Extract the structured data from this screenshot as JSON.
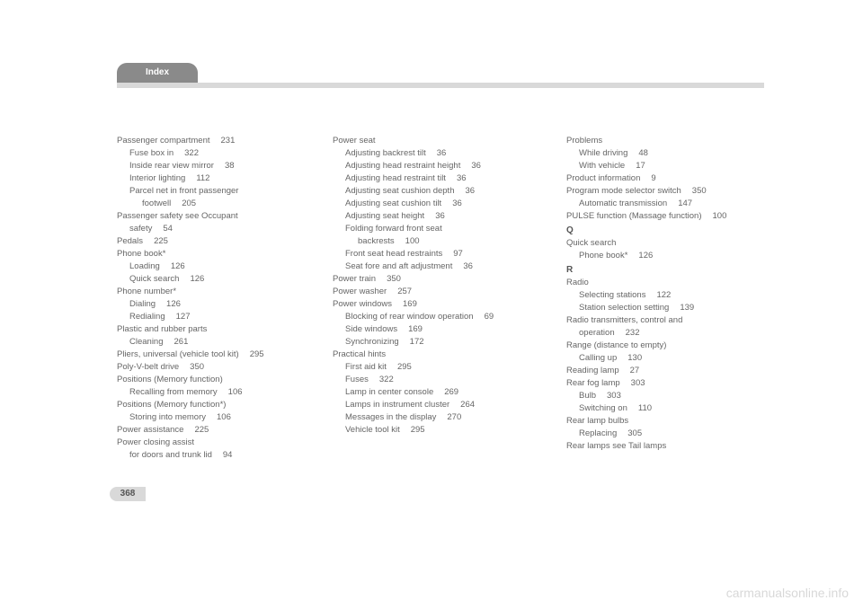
{
  "header": {
    "tab_label": "Index"
  },
  "pagenum": "368",
  "watermark": "carmanualsonline.info",
  "col1": [
    {
      "t": "Passenger compartment",
      "p": "231",
      "cls": "main"
    },
    {
      "t": "Fuse box in",
      "p": "322",
      "cls": "sub"
    },
    {
      "t": "Inside rear view mirror",
      "p": "38",
      "cls": "sub"
    },
    {
      "t": "Interior lighting",
      "p": "112",
      "cls": "sub"
    },
    {
      "t": "Parcel net in front passenger",
      "cls": "sub"
    },
    {
      "t": "footwell",
      "p": "205",
      "cls": "subsub"
    },
    {
      "t": "Passenger safety see Occupant",
      "cls": "main"
    },
    {
      "t": "safety",
      "p": "54",
      "cls": "sub"
    },
    {
      "t": "Pedals",
      "p": "225",
      "cls": "main"
    },
    {
      "t": "Phone book*",
      "cls": "main"
    },
    {
      "t": "Loading",
      "p": "126",
      "cls": "sub"
    },
    {
      "t": "Quick search",
      "p": "126",
      "cls": "sub"
    },
    {
      "t": "Phone number*",
      "cls": "main"
    },
    {
      "t": "Dialing",
      "p": "126",
      "cls": "sub"
    },
    {
      "t": "Redialing",
      "p": "127",
      "cls": "sub"
    },
    {
      "t": "Plastic and rubber parts",
      "cls": "main"
    },
    {
      "t": "Cleaning",
      "p": "261",
      "cls": "sub"
    },
    {
      "t": "Pliers, universal (vehicle tool kit)",
      "p": "295",
      "cls": "main"
    },
    {
      "t": "Poly-V-belt drive",
      "p": "350",
      "cls": "main"
    },
    {
      "t": "Positions (Memory function)",
      "cls": "main"
    },
    {
      "t": "Recalling from memory",
      "p": "106",
      "cls": "sub"
    },
    {
      "t": "Positions (Memory function*)",
      "cls": "main"
    },
    {
      "t": "Storing into memory",
      "p": "106",
      "cls": "sub"
    },
    {
      "t": "Power assistance",
      "p": "225",
      "cls": "main"
    },
    {
      "t": "Power closing assist",
      "cls": "main"
    },
    {
      "t": "for doors and trunk lid",
      "p": "94",
      "cls": "sub"
    }
  ],
  "col2": [
    {
      "t": "Power seat",
      "cls": "main"
    },
    {
      "t": "Adjusting backrest tilt",
      "p": "36",
      "cls": "sub"
    },
    {
      "t": "Adjusting head restraint height",
      "p": "36",
      "cls": "sub"
    },
    {
      "t": "Adjusting head restraint tilt",
      "p": "36",
      "cls": "sub"
    },
    {
      "t": "Adjusting seat cushion depth",
      "p": "36",
      "cls": "sub"
    },
    {
      "t": "Adjusting seat cushion tilt",
      "p": "36",
      "cls": "sub"
    },
    {
      "t": "Adjusting seat height",
      "p": "36",
      "cls": "sub"
    },
    {
      "t": "Folding forward front seat",
      "cls": "sub"
    },
    {
      "t": "backrests",
      "p": "100",
      "cls": "subsub"
    },
    {
      "t": "Front seat head restraints",
      "p": "97",
      "cls": "sub"
    },
    {
      "t": "Seat fore and aft adjustment",
      "p": "36",
      "cls": "sub"
    },
    {
      "t": "Power train",
      "p": "350",
      "cls": "main"
    },
    {
      "t": "Power washer",
      "p": "257",
      "cls": "main"
    },
    {
      "t": "Power windows",
      "p": "169",
      "cls": "main"
    },
    {
      "t": "Blocking of rear window operation",
      "p": "69",
      "cls": "sub"
    },
    {
      "t": "Side windows",
      "p": "169",
      "cls": "sub"
    },
    {
      "t": "Synchronizing",
      "p": "172",
      "cls": "sub"
    },
    {
      "t": "Practical hints",
      "cls": "main"
    },
    {
      "t": "First aid kit",
      "p": "295",
      "cls": "sub"
    },
    {
      "t": "Fuses",
      "p": "322",
      "cls": "sub"
    },
    {
      "t": "Lamp in center console",
      "p": "269",
      "cls": "sub"
    },
    {
      "t": "Lamps in instrument cluster",
      "p": "264",
      "cls": "sub"
    },
    {
      "t": "Messages in the display",
      "p": "270",
      "cls": "sub"
    },
    {
      "t": "Vehicle tool kit",
      "p": "295",
      "cls": "sub"
    }
  ],
  "col3": [
    {
      "t": "Problems",
      "cls": "main"
    },
    {
      "t": "While driving",
      "p": "48",
      "cls": "sub"
    },
    {
      "t": "With vehicle",
      "p": "17",
      "cls": "sub"
    },
    {
      "t": "Product information",
      "p": "9",
      "cls": "main"
    },
    {
      "t": "Program mode selector switch",
      "p": "350",
      "cls": "main"
    },
    {
      "t": "Automatic transmission",
      "p": "147",
      "cls": "sub"
    },
    {
      "t": "PULSE function (Massage function)",
      "p": "100",
      "cls": "main"
    },
    {
      "t": "Q",
      "cls": "letter"
    },
    {
      "t": "Quick search",
      "cls": "main"
    },
    {
      "t": "Phone book*",
      "p": "126",
      "cls": "sub"
    },
    {
      "t": "R",
      "cls": "letter"
    },
    {
      "t": "Radio",
      "cls": "main"
    },
    {
      "t": "Selecting stations",
      "p": "122",
      "cls": "sub"
    },
    {
      "t": "Station selection setting",
      "p": "139",
      "cls": "sub"
    },
    {
      "t": "Radio transmitters, control and",
      "cls": "main"
    },
    {
      "t": "operation",
      "p": "232",
      "cls": "sub"
    },
    {
      "t": "Range (distance to empty)",
      "cls": "main"
    },
    {
      "t": "Calling up",
      "p": "130",
      "cls": "sub"
    },
    {
      "t": "Reading lamp",
      "p": "27",
      "cls": "main"
    },
    {
      "t": "Rear fog lamp",
      "p": "303",
      "cls": "main"
    },
    {
      "t": "Bulb",
      "p": "303",
      "cls": "sub"
    },
    {
      "t": "Switching on",
      "p": "110",
      "cls": "sub"
    },
    {
      "t": "Rear lamp bulbs",
      "cls": "main"
    },
    {
      "t": "Replacing",
      "p": "305",
      "cls": "sub"
    },
    {
      "t": "Rear lamps see Tail lamps",
      "cls": "main"
    }
  ]
}
